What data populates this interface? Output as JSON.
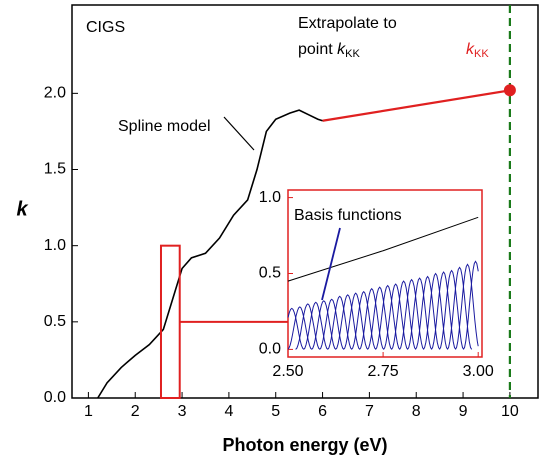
{
  "chart_data": {
    "type": "line",
    "title": "CIGS",
    "xlabel": "Photon energy (eV)",
    "ylabel": "k",
    "xlim": [
      0.65,
      10.6
    ],
    "ylim": [
      0,
      2.58
    ],
    "xticks": [
      1,
      2,
      3,
      4,
      5,
      6,
      7,
      8,
      9,
      10
    ],
    "yticks": [
      {
        "value": 0,
        "label": "0.0"
      },
      {
        "value": 0.5,
        "label": "0.5"
      },
      {
        "value": 1,
        "label": "1.0"
      },
      {
        "value": 1.5,
        "label": "1.5"
      },
      {
        "value": 2,
        "label": "2.0"
      }
    ],
    "series": [
      {
        "name": "Spline model",
        "color": "#000000",
        "x": [
          1.2,
          1.4,
          1.7,
          2.0,
          2.3,
          2.6,
          2.8,
          3.0,
          3.2,
          3.5,
          3.8,
          4.1,
          4.4,
          4.6,
          4.8,
          5.0,
          5.3,
          5.5,
          5.7,
          5.9,
          6.0
        ],
        "values": [
          0,
          0.1,
          0.2,
          0.28,
          0.35,
          0.45,
          0.65,
          0.85,
          0.92,
          0.95,
          1.05,
          1.2,
          1.3,
          1.5,
          1.75,
          1.83,
          1.87,
          1.89,
          1.86,
          1.83,
          1.82
        ]
      },
      {
        "name": "Extrapolate to",
        "color": "#e02020",
        "x": [
          6.0,
          10
        ],
        "values": [
          1.82,
          2.02
        ]
      }
    ],
    "annotations": {
      "extrapolate": [
        "Extrapolate to",
        "point"
      ],
      "k_symbol": "k",
      "k_subscript": "KK",
      "kkk_color": "#e02020",
      "cutoff_x": 10,
      "cutoff_color": "#1a7a1a"
    },
    "zoom_box": {
      "x": [
        2.55,
        2.95
      ],
      "y": [
        0,
        1.0
      ],
      "link_y": 0.5,
      "color": "#e02020"
    },
    "inset": {
      "title": "Basis functions",
      "xlim": [
        2.5,
        3.01
      ],
      "ylim": [
        -0.05,
        1.05
      ],
      "xticks": [
        {
          "value": 2.5,
          "label": "2.50"
        },
        {
          "value": 2.75,
          "label": "2.75"
        },
        {
          "value": 3,
          "label": "3.00"
        }
      ],
      "yticks": [
        {
          "value": 0,
          "label": "0.0"
        },
        {
          "value": 0.5,
          "label": "0.5"
        },
        {
          "value": 1,
          "label": "1.0"
        }
      ],
      "line": {
        "color": "#000000",
        "x": [
          2.5,
          2.75,
          3.0
        ],
        "values": [
          0.45,
          0.65,
          0.87
        ]
      },
      "basis": {
        "color": "#1a1aa0",
        "half_width": 0.032,
        "centers": [
          2.51,
          2.531,
          2.552,
          2.573,
          2.594,
          2.615,
          2.636,
          2.657,
          2.678,
          2.699,
          2.72,
          2.741,
          2.762,
          2.783,
          2.804,
          2.825,
          2.846,
          2.867,
          2.888,
          2.909,
          2.93,
          2.951,
          2.972,
          2.993
        ],
        "amplitudes": [
          0.27,
          0.28,
          0.3,
          0.31,
          0.32,
          0.33,
          0.35,
          0.36,
          0.37,
          0.38,
          0.4,
          0.41,
          0.42,
          0.43,
          0.45,
          0.46,
          0.47,
          0.48,
          0.5,
          0.51,
          0.52,
          0.54,
          0.56,
          0.58
        ]
      }
    }
  }
}
